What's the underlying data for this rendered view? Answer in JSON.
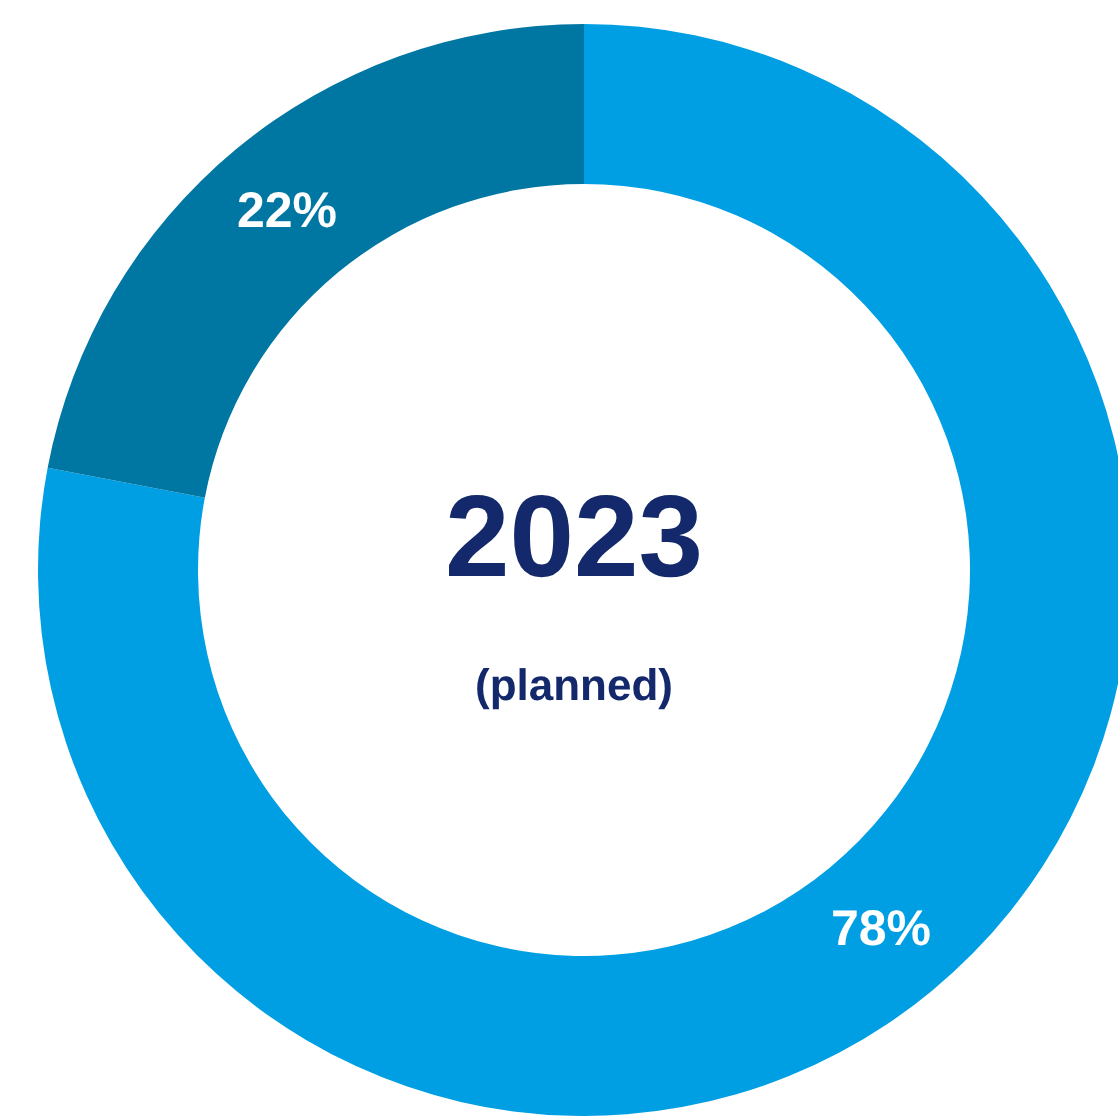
{
  "chart_data": {
    "type": "donut",
    "title": "2023",
    "subtitle": "(planned)",
    "categories": [
      null,
      null
    ],
    "values": [
      78,
      22
    ],
    "colors": [
      "#009fe3",
      "#0077a3"
    ],
    "value_labels": [
      "78%",
      "22%"
    ]
  }
}
